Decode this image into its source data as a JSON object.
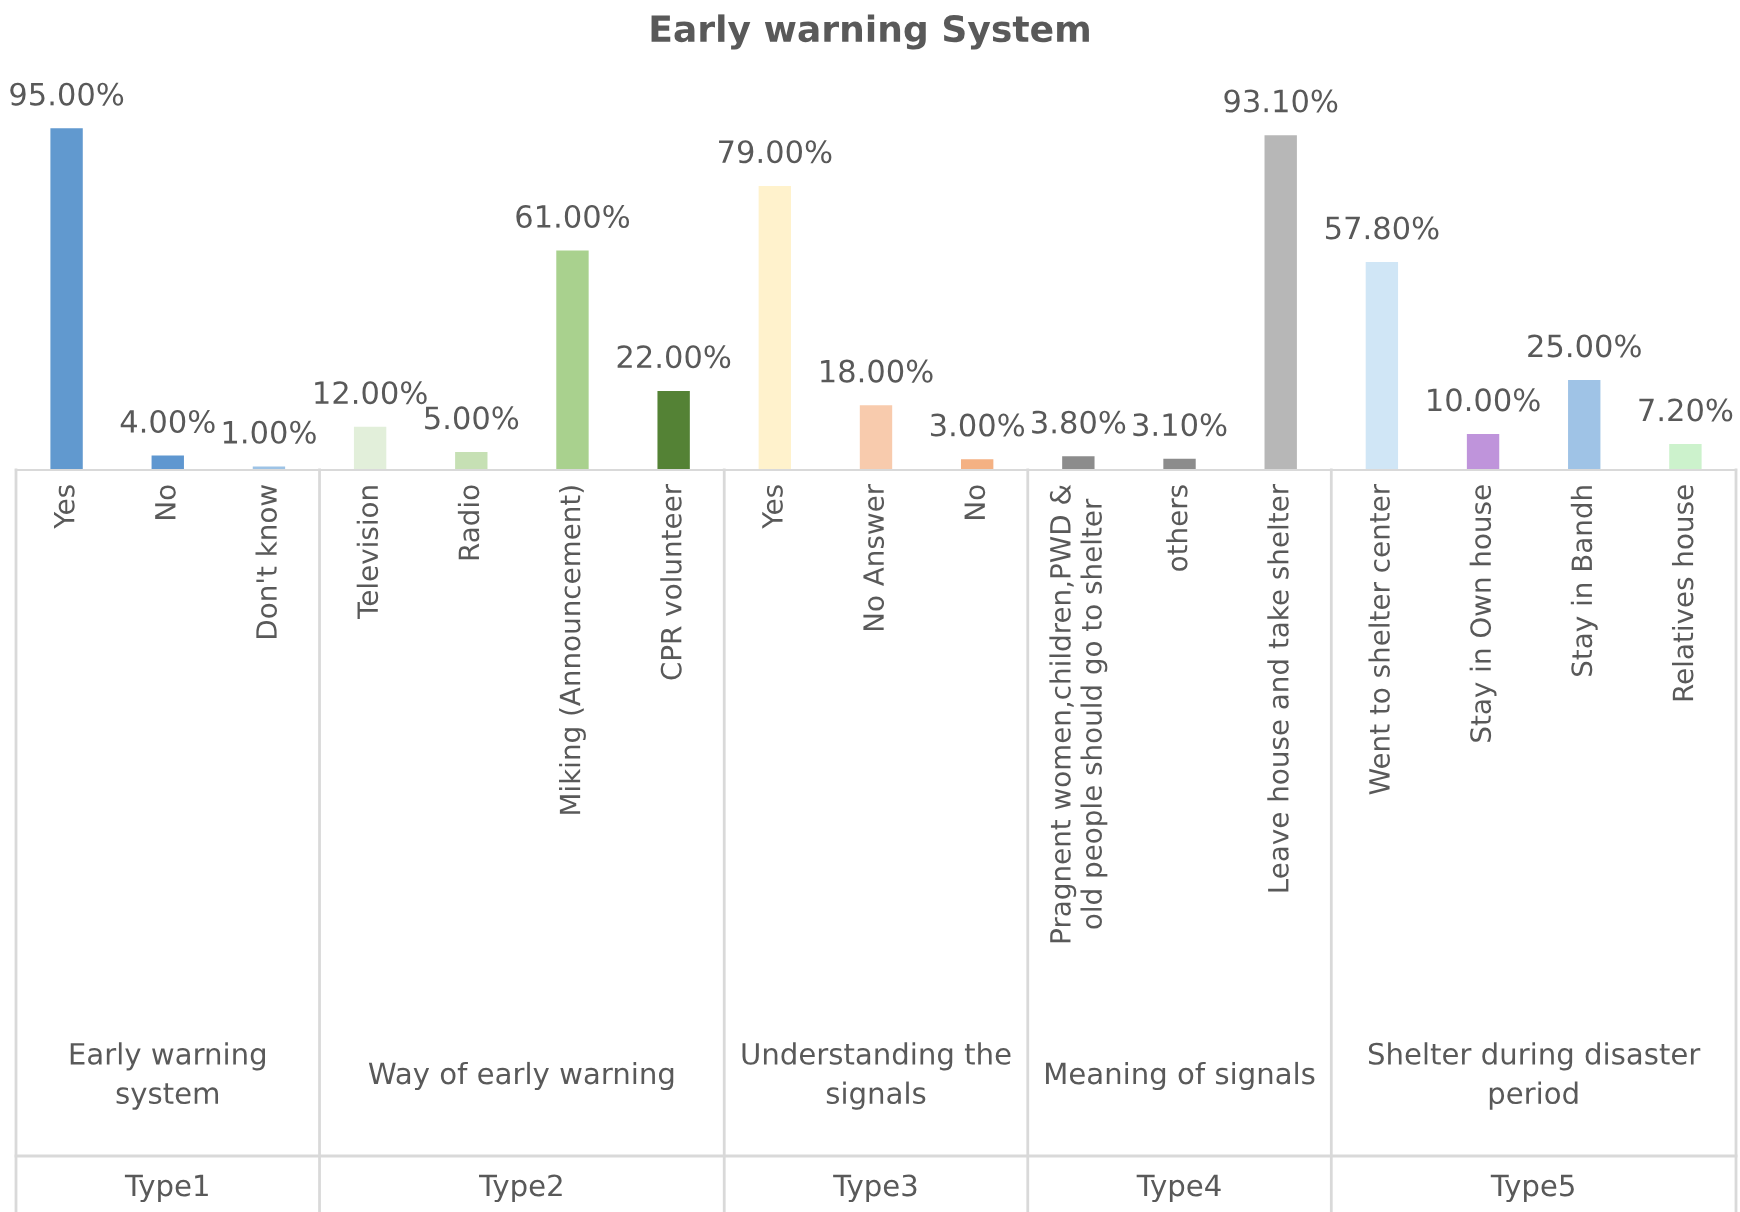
{
  "chart_data": {
    "type": "bar",
    "title": "Early warning System",
    "categories": [
      "Yes",
      "No",
      "Don't know",
      "Television",
      "Radio",
      "Miking (Announcement)",
      "CPR volunteer",
      "Yes",
      "No Answer",
      "No",
      "Pragnent women,children,PWD &\nold people should go to shelter",
      "others",
      "Leave house and take shelter",
      "Went to shelter center",
      "Stay in Own house",
      "Stay in Bandh",
      "Relatives house"
    ],
    "values": [
      95,
      4,
      1,
      12,
      5,
      61,
      22,
      79,
      18,
      3,
      3.8,
      3.1,
      93.1,
      57.8,
      10,
      25,
      7.2
    ],
    "value_labels": [
      "95.00%",
      "4.00%",
      "1.00%",
      "12.00%",
      "5.00%",
      "61.00%",
      "22.00%",
      "79.00%",
      "18.00%",
      "3.00%",
      "3.80%",
      "3.10%",
      "93.10%",
      "57.80%",
      "10.00%",
      "25.00%",
      "7.20%"
    ],
    "colors": [
      "#6199cf",
      "#5f97d0",
      "#9dc3e6",
      "#e2efda",
      "#c6e0b4",
      "#a9d18e",
      "#548235",
      "#fff2cc",
      "#f8cbad",
      "#f4b183",
      "#8c8c8c",
      "#8c8c8c",
      "#b7b7b7",
      "#d0e6f6",
      "#bf94db",
      "#9fc3e6",
      "#ccf2cc"
    ],
    "annotations": [
      "Early warning\nsystem",
      "Way of early warning",
      "Understanding the\nsignals",
      "Meaning of signals",
      "Shelter during disaster\nperiod",
      "Type1",
      "Type2",
      "Type3",
      "Type4",
      "Type5"
    ],
    "grid": false
  }
}
